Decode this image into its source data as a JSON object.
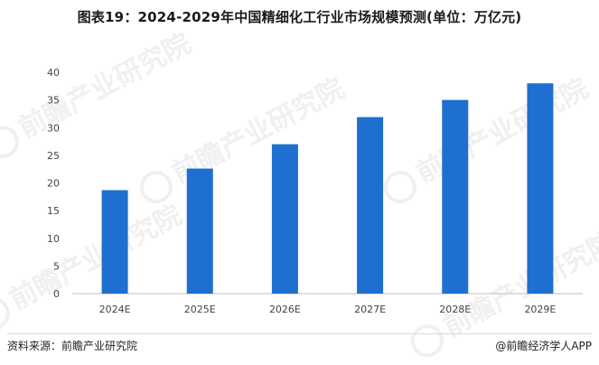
{
  "title": "图表19：2024-2029年中国精细化工行业市场规模预测(单位：万亿元)",
  "watermark": "前瞻产业研究院",
  "footer": {
    "source": "资料来源：前瞻产业研究院",
    "brand": "@前瞻经济学人APP"
  },
  "colors": {
    "bar": "#1f6fd1",
    "axis": "#bfbfbf"
  },
  "chart_data": {
    "type": "bar",
    "categories": [
      "2024E",
      "2025E",
      "2026E",
      "2027E",
      "2028E",
      "2029E"
    ],
    "values": [
      18.7,
      22.6,
      27.0,
      31.9,
      35.0,
      38.0
    ],
    "ylim": [
      0,
      40
    ],
    "yticks": [
      0,
      5,
      10,
      15,
      20,
      25,
      30,
      35,
      40
    ],
    "grid": false,
    "xlabel": "",
    "ylabel": ""
  }
}
